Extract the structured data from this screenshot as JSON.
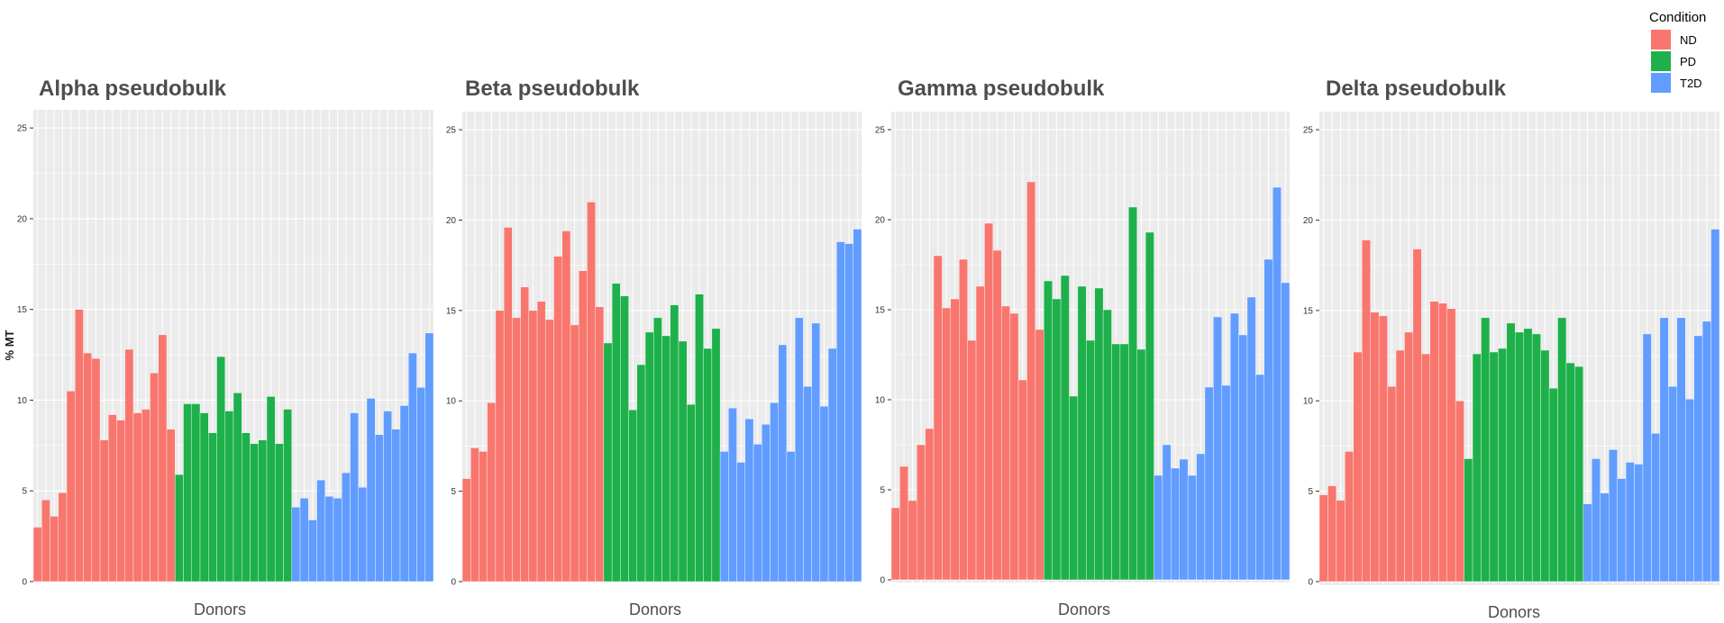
{
  "legend": {
    "title": "Condition",
    "items": [
      {
        "name": "ND",
        "color": "#F8766D"
      },
      {
        "name": "PD",
        "color": "#1EB04A"
      },
      {
        "name": "T2D",
        "color": "#619CFF"
      }
    ]
  },
  "chart_data": [
    {
      "type": "bar",
      "title": "Alpha pseudobulk",
      "xlabel": "Donors",
      "ylabel": "% MT",
      "ylim": [
        0,
        26
      ],
      "yticks": [
        "0",
        "5",
        "10",
        "15",
        "20",
        "25"
      ],
      "panel_background": "#EBEBEB",
      "grid": true,
      "series": [
        {
          "name": "ND",
          "values": [
            3.0,
            4.5,
            3.6,
            4.9,
            10.5,
            15.0,
            12.6,
            12.3,
            7.8,
            9.2,
            8.9,
            12.8,
            9.3,
            9.5,
            11.5,
            13.6,
            8.4
          ]
        },
        {
          "name": "PD",
          "values": [
            5.9,
            9.8,
            9.8,
            9.3,
            8.2,
            12.4,
            9.4,
            10.4,
            8.2,
            7.6,
            7.8,
            10.2,
            7.6,
            9.5
          ]
        },
        {
          "name": "T2D",
          "values": [
            4.1,
            4.6,
            3.4,
            5.6,
            4.7,
            4.6,
            6.0,
            9.3,
            5.2,
            10.1,
            8.1,
            9.4,
            8.4,
            9.7,
            12.6,
            10.7,
            13.7
          ]
        }
      ]
    },
    {
      "type": "bar",
      "title": "Beta pseudobulk",
      "xlabel": "Donors",
      "ylabel": "",
      "ylim": [
        0,
        26
      ],
      "yticks": [
        "0",
        "5",
        "10",
        "15",
        "20",
        "25"
      ],
      "panel_background": "#EBEBEB",
      "grid": true,
      "series": [
        {
          "name": "ND",
          "values": [
            5.7,
            7.4,
            7.2,
            9.9,
            15.0,
            19.6,
            14.6,
            16.3,
            15.0,
            15.5,
            14.5,
            18.0,
            19.4,
            14.2,
            17.2,
            21.0,
            15.2
          ]
        },
        {
          "name": "PD",
          "values": [
            13.2,
            16.5,
            15.8,
            9.5,
            12.0,
            13.8,
            14.6,
            13.6,
            15.3,
            13.3,
            9.8,
            15.9,
            12.9,
            14.0
          ]
        },
        {
          "name": "T2D",
          "values": [
            7.2,
            9.6,
            6.6,
            9.0,
            7.6,
            8.7,
            9.9,
            13.1,
            7.2,
            14.6,
            10.8,
            14.3,
            9.7,
            12.9,
            18.8,
            18.7,
            19.5
          ]
        }
      ]
    },
    {
      "type": "bar",
      "title": "Gamma pseudobulk",
      "xlabel": "Donors",
      "ylabel": "",
      "ylim": [
        0,
        26
      ],
      "yticks": [
        "0",
        "5",
        "10",
        "15",
        "20",
        "25"
      ],
      "panel_background": "#EBEBEB",
      "grid": true,
      "series": [
        {
          "name": "ND",
          "values": [
            4.0,
            6.3,
            4.4,
            7.5,
            8.4,
            18.0,
            15.1,
            15.6,
            17.8,
            13.3,
            16.3,
            19.8,
            18.3,
            15.2,
            14.8,
            11.1,
            22.1,
            13.9
          ]
        },
        {
          "name": "PD",
          "values": [
            16.6,
            15.6,
            16.9,
            10.2,
            16.3,
            13.3,
            16.2,
            15.0,
            13.1,
            13.1,
            20.7,
            12.8,
            19.3
          ]
        },
        {
          "name": "T2D",
          "values": [
            5.8,
            7.5,
            6.2,
            6.7,
            5.8,
            7.0,
            10.7,
            14.6,
            10.8,
            14.8,
            13.6,
            15.7,
            11.4,
            17.8,
            21.8,
            16.5
          ]
        }
      ]
    },
    {
      "type": "bar",
      "title": "Delta pseudobulk",
      "xlabel": "Donors",
      "ylabel": "",
      "ylim": [
        0,
        26
      ],
      "yticks": [
        "0",
        "5",
        "10",
        "15",
        "20",
        "25"
      ],
      "panel_background": "#EBEBEB",
      "grid": true,
      "series": [
        {
          "name": "ND",
          "values": [
            4.8,
            5.3,
            4.5,
            7.2,
            12.7,
            18.9,
            14.9,
            14.7,
            10.8,
            12.8,
            13.8,
            18.4,
            12.6,
            15.5,
            15.4,
            15.1,
            10.0
          ]
        },
        {
          "name": "PD",
          "values": [
            6.8,
            12.6,
            14.6,
            12.7,
            12.9,
            14.3,
            13.8,
            14.0,
            13.7,
            12.8,
            10.7,
            14.6,
            12.1,
            11.9
          ]
        },
        {
          "name": "T2D",
          "values": [
            4.3,
            6.8,
            4.9,
            7.3,
            5.7,
            6.6,
            6.5,
            13.7,
            8.2,
            14.6,
            10.8,
            14.6,
            10.1,
            13.6,
            14.4,
            19.5
          ]
        }
      ]
    }
  ]
}
